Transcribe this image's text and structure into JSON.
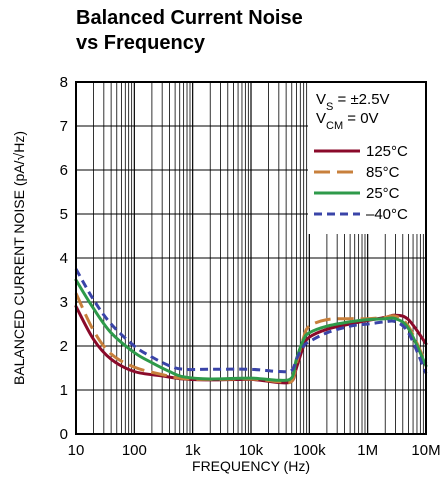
{
  "chart_data": {
    "type": "line",
    "title_lines": [
      "Balanced Current Noise",
      "vs Frequency"
    ],
    "xlabel": "FREQUENCY (Hz)",
    "ylabel": "BALANCED CURRENT NOISE (pA/√Hz)",
    "x_scale": "log",
    "xlim": [
      10,
      10000000
    ],
    "ylim": [
      0,
      8
    ],
    "x_ticks": [
      10,
      100,
      1000,
      10000,
      100000,
      1000000,
      10000000
    ],
    "x_tick_labels": [
      "10",
      "100",
      "1k",
      "10k",
      "100k",
      "1M",
      "10M"
    ],
    "y_ticks": [
      0,
      1,
      2,
      3,
      4,
      5,
      6,
      7,
      8
    ],
    "y_tick_labels": [
      "0",
      "1",
      "2",
      "3",
      "4",
      "5",
      "6",
      "7",
      "8"
    ],
    "grid": true,
    "legend_position": "top-right",
    "conditions": [
      {
        "main": "V",
        "sub": "S",
        "rest": " = ±2.5V"
      },
      {
        "main": "V",
        "sub": "CM",
        "rest": " = 0V"
      }
    ],
    "series": [
      {
        "name": "125°C",
        "color": "#8a0a2a",
        "dash": "solid",
        "points": [
          [
            10,
            2.9
          ],
          [
            20,
            2.15
          ],
          [
            40,
            1.7
          ],
          [
            100,
            1.42
          ],
          [
            300,
            1.32
          ],
          [
            700,
            1.25
          ],
          [
            2000,
            1.23
          ],
          [
            10000,
            1.24
          ],
          [
            30000,
            1.17
          ],
          [
            50000,
            1.2
          ],
          [
            60000,
            1.5
          ],
          [
            80000,
            2.0
          ],
          [
            100000,
            2.2
          ],
          [
            200000,
            2.38
          ],
          [
            500000,
            2.5
          ],
          [
            1000000,
            2.58
          ],
          [
            2000000,
            2.65
          ],
          [
            3000000,
            2.7
          ],
          [
            5000000,
            2.6
          ],
          [
            10000000,
            2.05
          ]
        ]
      },
      {
        "name": "85°C",
        "color": "#c8803c",
        "dash": "long",
        "points": [
          [
            10,
            3.2
          ],
          [
            20,
            2.35
          ],
          [
            40,
            1.82
          ],
          [
            100,
            1.52
          ],
          [
            300,
            1.35
          ],
          [
            700,
            1.26
          ],
          [
            2000,
            1.24
          ],
          [
            10000,
            1.25
          ],
          [
            30000,
            1.19
          ],
          [
            50000,
            1.2
          ],
          [
            60000,
            1.6
          ],
          [
            80000,
            2.2
          ],
          [
            100000,
            2.45
          ],
          [
            200000,
            2.6
          ],
          [
            500000,
            2.62
          ],
          [
            1000000,
            2.62
          ],
          [
            2000000,
            2.65
          ],
          [
            3000000,
            2.68
          ],
          [
            5000000,
            2.45
          ],
          [
            10000000,
            1.6
          ]
        ]
      },
      {
        "name": "25°C",
        "color": "#2e9a4a",
        "dash": "solid",
        "points": [
          [
            10,
            3.5
          ],
          [
            20,
            2.85
          ],
          [
            40,
            2.3
          ],
          [
            100,
            1.85
          ],
          [
            200,
            1.62
          ],
          [
            400,
            1.42
          ],
          [
            700,
            1.3
          ],
          [
            2000,
            1.25
          ],
          [
            10000,
            1.27
          ],
          [
            30000,
            1.22
          ],
          [
            50000,
            1.28
          ],
          [
            60000,
            1.7
          ],
          [
            80000,
            2.15
          ],
          [
            100000,
            2.3
          ],
          [
            200000,
            2.45
          ],
          [
            500000,
            2.55
          ],
          [
            1000000,
            2.6
          ],
          [
            2000000,
            2.62
          ],
          [
            3000000,
            2.62
          ],
          [
            5000000,
            2.4
          ],
          [
            10000000,
            1.55
          ]
        ]
      },
      {
        "name": "–40°C",
        "color": "#3a44a8",
        "dash": "short",
        "points": [
          [
            10,
            3.75
          ],
          [
            20,
            3.05
          ],
          [
            40,
            2.5
          ],
          [
            100,
            2.0
          ],
          [
            200,
            1.75
          ],
          [
            400,
            1.55
          ],
          [
            700,
            1.47
          ],
          [
            2000,
            1.47
          ],
          [
            10000,
            1.47
          ],
          [
            30000,
            1.42
          ],
          [
            50000,
            1.45
          ],
          [
            60000,
            1.7
          ],
          [
            80000,
            2.0
          ],
          [
            100000,
            2.1
          ],
          [
            200000,
            2.3
          ],
          [
            500000,
            2.45
          ],
          [
            1000000,
            2.5
          ],
          [
            2000000,
            2.55
          ],
          [
            3000000,
            2.55
          ],
          [
            5000000,
            2.3
          ],
          [
            10000000,
            1.38
          ]
        ]
      }
    ]
  }
}
